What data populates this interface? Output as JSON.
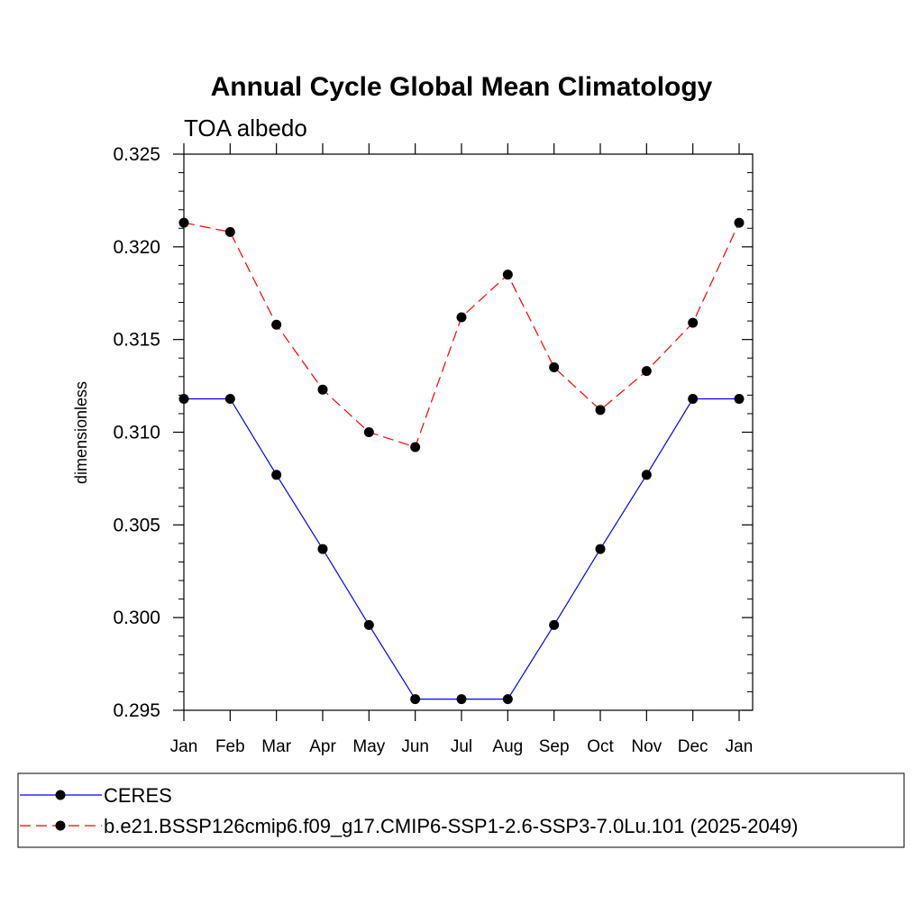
{
  "chart_data": {
    "type": "line",
    "title": "Annual Cycle Global Mean Climatology",
    "subtitle": "TOA albedo",
    "xlabel": "",
    "ylabel": "dimensionless",
    "categories": [
      "Jan",
      "Feb",
      "Mar",
      "Apr",
      "May",
      "Jun",
      "Jul",
      "Aug",
      "Sep",
      "Oct",
      "Nov",
      "Dec",
      "Jan"
    ],
    "ylim": [
      0.295,
      0.325
    ],
    "yticks": [
      "0.295",
      "0.300",
      "0.305",
      "0.310",
      "0.315",
      "0.320",
      "0.325"
    ],
    "grid": false,
    "legend_position": "bottom",
    "series": [
      {
        "name": "CERES",
        "color": "#0000ff",
        "dash": "solid",
        "marker": "dot",
        "values": [
          0.3118,
          0.3118,
          0.3077,
          0.3037,
          0.2996,
          0.2956,
          0.2956,
          0.2956,
          0.2996,
          0.3037,
          0.3077,
          0.3118,
          0.3118
        ]
      },
      {
        "name": "b.e21.BSSP126cmip6.f09_g17.CMIP6-SSP1-2.6-SSP3-7.0Lu.101 (2025-2049)",
        "color": "#ff0000",
        "dash": "dashed",
        "marker": "dot",
        "values": [
          0.3213,
          0.3208,
          0.3158,
          0.3123,
          0.31,
          0.3092,
          0.3162,
          0.3185,
          0.3135,
          0.3112,
          0.3133,
          0.3159,
          0.3213
        ]
      }
    ]
  }
}
